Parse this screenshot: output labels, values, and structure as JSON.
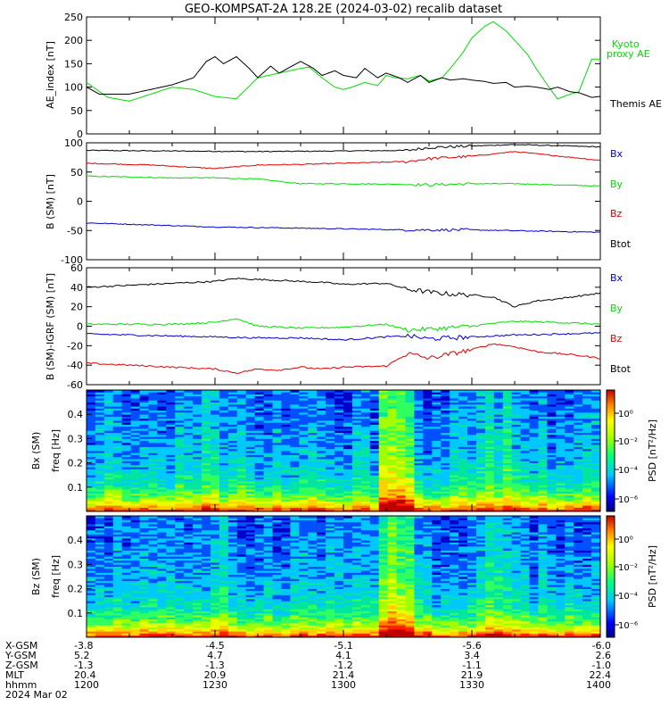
{
  "title": "GEO-KOMPSAT-2A 128.2E (2024-03-02) recalib dataset",
  "chart_data": [
    {
      "type": "line",
      "ylabel": "AE_index [nT]",
      "ylim": [
        0,
        250
      ],
      "yticks": [
        0,
        50,
        100,
        150,
        200,
        250
      ],
      "x_hhmm_range": [
        "1200",
        "1400"
      ],
      "series": [
        {
          "name": "Kyoto proxy AE",
          "color": "#00dd00",
          "x_min": [
            0,
            5,
            10,
            15,
            20,
            25,
            30,
            35,
            40,
            45,
            50,
            52,
            55,
            58,
            60,
            62,
            65,
            68,
            70,
            72,
            75,
            78,
            80,
            83,
            85,
            88,
            90,
            93,
            95,
            98,
            100,
            103,
            105,
            108,
            110,
            113,
            115,
            118,
            120
          ],
          "values": [
            110,
            78,
            70,
            85,
            100,
            95,
            80,
            75,
            120,
            130,
            140,
            143,
            120,
            100,
            95,
            100,
            110,
            103,
            125,
            120,
            118,
            125,
            113,
            120,
            140,
            175,
            205,
            230,
            240,
            220,
            200,
            170,
            140,
            100,
            75,
            85,
            90,
            160,
            160
          ]
        },
        {
          "name": "Themis AE",
          "color": "#000000",
          "x_min": [
            0,
            3,
            10,
            15,
            20,
            25,
            28,
            30,
            32,
            35,
            38,
            40,
            43,
            45,
            48,
            50,
            53,
            55,
            58,
            60,
            63,
            65,
            68,
            70,
            73,
            75,
            78,
            80,
            83,
            85,
            88,
            90,
            93,
            95,
            98,
            100,
            103,
            105,
            108,
            110,
            113,
            115,
            118,
            120
          ],
          "values": [
            100,
            85,
            85,
            95,
            105,
            120,
            155,
            165,
            150,
            165,
            140,
            120,
            145,
            130,
            145,
            155,
            140,
            125,
            135,
            125,
            120,
            140,
            120,
            130,
            120,
            110,
            125,
            110,
            120,
            115,
            118,
            115,
            112,
            108,
            110,
            100,
            102,
            100,
            95,
            100,
            90,
            88,
            78,
            80
          ]
        }
      ]
    },
    {
      "type": "line",
      "ylabel": "B (SM) [nT]",
      "ylim": [
        -100,
        100
      ],
      "yticks": [
        -100,
        -50,
        0,
        50,
        100
      ],
      "series": [
        {
          "name": "Bx",
          "color": "#000000",
          "x_min": [
            0,
            20,
            40,
            60,
            75,
            80,
            100,
            120
          ],
          "values": [
            87,
            86,
            85,
            86,
            87,
            92,
            97,
            93
          ]
        },
        {
          "name": "By",
          "color": "#00dd00",
          "x_min": [
            0,
            20,
            30,
            40,
            50,
            60,
            75,
            80,
            90,
            100,
            120
          ],
          "values": [
            43,
            40,
            40,
            38,
            30,
            30,
            29,
            28,
            30,
            30,
            26
          ]
        },
        {
          "name": "Bz",
          "color": "#dd0000",
          "x_min": [
            0,
            15,
            30,
            40,
            50,
            60,
            75,
            80,
            90,
            100,
            120
          ],
          "values": [
            65,
            62,
            56,
            62,
            63,
            65,
            68,
            73,
            77,
            85,
            70
          ]
        },
        {
          "name": "Btot",
          "color": "#0000cc",
          "x_min": [
            0,
            30,
            50,
            75,
            90,
            120
          ],
          "values": [
            -37,
            -44,
            -46,
            -49,
            -49,
            -53
          ]
        }
      ]
    },
    {
      "type": "line",
      "ylabel": "B (SM)-IGRF (SM) [nT]",
      "ylim": [
        -60,
        60
      ],
      "yticks": [
        -60,
        -40,
        -20,
        0,
        20,
        40,
        60
      ],
      "series": [
        {
          "name": "Bx",
          "color": "#000000",
          "x_min": [
            0,
            10,
            20,
            30,
            35,
            40,
            45,
            50,
            55,
            60,
            70,
            75,
            80,
            85,
            90,
            95,
            100,
            105,
            110,
            115,
            120
          ],
          "values": [
            40,
            42,
            44,
            46,
            49,
            48,
            47,
            46,
            45,
            43,
            44,
            38,
            35,
            33,
            32,
            30,
            20,
            26,
            28,
            31,
            34
          ]
        },
        {
          "name": "By",
          "color": "#00dd00",
          "x_min": [
            0,
            20,
            30,
            35,
            40,
            50,
            60,
            70,
            75,
            80,
            90,
            95,
            100,
            110,
            120
          ],
          "values": [
            2,
            2,
            4,
            8,
            0,
            -2,
            -1,
            2,
            -4,
            -3,
            0,
            3,
            5,
            4,
            2
          ]
        },
        {
          "name": "Bz",
          "color": "#0000cc",
          "x_min": [
            0,
            20,
            30,
            40,
            50,
            60,
            70,
            75,
            80,
            90,
            100,
            110,
            120
          ],
          "values": [
            -8,
            -10,
            -11,
            -12,
            -12,
            -14,
            -11,
            -10,
            -13,
            -11,
            -9,
            -8,
            -7
          ]
        },
        {
          "name": "Btot",
          "color": "#dd0000",
          "x_min": [
            0,
            10,
            20,
            30,
            35,
            40,
            45,
            50,
            55,
            60,
            70,
            75,
            80,
            90,
            95,
            100,
            105,
            110,
            115,
            120
          ],
          "values": [
            -38,
            -40,
            -42,
            -44,
            -48,
            -44,
            -45,
            -42,
            -44,
            -42,
            -41,
            -28,
            -33,
            -24,
            -18,
            -21,
            -26,
            -28,
            -30,
            -33
          ]
        }
      ]
    },
    {
      "type": "heatmap",
      "ylabel": "Bx (SM)",
      "ylabel2": "freq [Hz]",
      "ylim": [
        0,
        0.5
      ],
      "yticks": [
        0.1,
        0.2,
        0.3,
        0.4
      ],
      "colorbar": {
        "label": "PSD [nT²/Hz]",
        "ticks": [
          "10⁰",
          "10⁻²",
          "10⁻⁴",
          "10⁻⁶"
        ]
      }
    },
    {
      "type": "heatmap",
      "ylabel": "Bz (SM)",
      "ylabel2": "freq [Hz]",
      "ylim": [
        0,
        0.5
      ],
      "yticks": [
        0.1,
        0.2,
        0.3,
        0.4
      ],
      "colorbar": {
        "label": "PSD [nT²/Hz]",
        "ticks": [
          "10⁰",
          "10⁻²",
          "10⁻⁴",
          "10⁻⁶"
        ]
      }
    }
  ],
  "orbit_table": {
    "rows": [
      {
        "label": "X-GSM",
        "values": [
          "-3.8",
          "-4.5",
          "-5.1",
          "-5.6",
          "-6.0"
        ]
      },
      {
        "label": "Y-GSM",
        "values": [
          "5.2",
          "4.7",
          "4.1",
          "3.4",
          "2.6"
        ]
      },
      {
        "label": "Z-GSM",
        "values": [
          "-1.3",
          "-1.3",
          "-1.2",
          "-1.1",
          "-1.0"
        ]
      },
      {
        "label": "MLT",
        "values": [
          "20.4",
          "20.9",
          "21.4",
          "21.9",
          "22.4"
        ]
      },
      {
        "label": "hhmm",
        "values": [
          "1200",
          "1230",
          "1300",
          "1330",
          "1400"
        ]
      }
    ],
    "date": "2024 Mar 02"
  },
  "legend_labels": {
    "ae": [
      "Kyoto",
      "proxy AE",
      "Themis AE"
    ],
    "bsm": [
      "Bx",
      "By",
      "Bz",
      "Btot"
    ],
    "bigrf": [
      "Bx",
      "By",
      "Bz",
      "Btot"
    ]
  }
}
